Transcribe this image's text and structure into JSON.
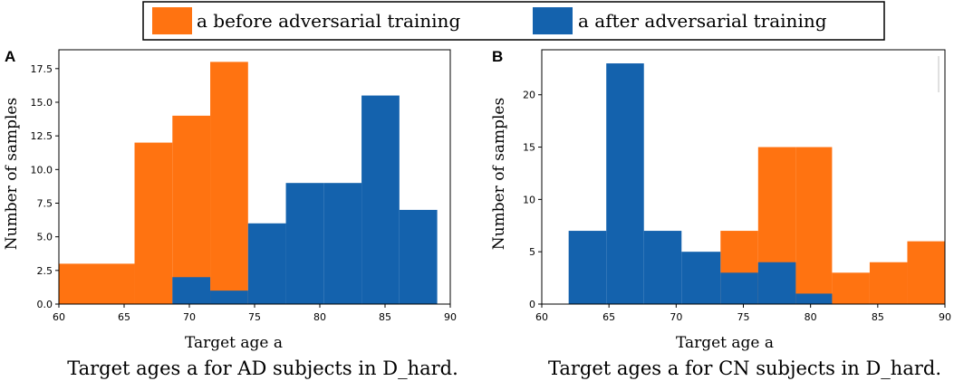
{
  "legend": {
    "before_label": "a before adversarial training",
    "after_label": "a after adversarial training",
    "before_color": "#ff7311",
    "after_color": "#1462ad"
  },
  "chart_data": [
    {
      "type": "bar",
      "panel_letter": "A",
      "caption": "Target ages a for AD subjects in D_hard.",
      "xlabel": "Target age a",
      "ylabel": "Number of samples",
      "xlim": [
        60,
        90
      ],
      "ylim": [
        0,
        18.9
      ],
      "xticks": [
        "60",
        "65",
        "70",
        "75",
        "80",
        "85",
        "90"
      ],
      "yticks": [
        "0.0",
        "2.5",
        "5.0",
        "7.5",
        "10.0",
        "12.5",
        "15.0",
        "17.5"
      ],
      "series": [
        {
          "name": "a before adversarial training",
          "bins": [
            {
              "x0": 60.0,
              "x1": 65.8,
              "value": 3
            },
            {
              "x0": 65.8,
              "x1": 68.7,
              "value": 12
            },
            {
              "x0": 68.7,
              "x1": 71.6,
              "value": 14
            },
            {
              "x0": 71.6,
              "x1": 74.5,
              "value": 18
            }
          ]
        },
        {
          "name": "a after adversarial training",
          "bins": [
            {
              "x0": 68.7,
              "x1": 71.6,
              "value": 2
            },
            {
              "x0": 71.6,
              "x1": 74.5,
              "value": 1
            },
            {
              "x0": 74.5,
              "x1": 77.4,
              "value": 6
            },
            {
              "x0": 77.4,
              "x1": 80.3,
              "value": 9
            },
            {
              "x0": 80.3,
              "x1": 83.2,
              "value": 9
            },
            {
              "x0": 83.2,
              "x1": 86.1,
              "value": 15.5
            },
            {
              "x0": 86.1,
              "x1": 89.0,
              "value": 7
            }
          ]
        }
      ]
    },
    {
      "type": "bar",
      "panel_letter": "B",
      "caption": "Target ages a for CN subjects in D_hard.",
      "xlabel": "Target age a",
      "ylabel": "Number of samples",
      "xlim": [
        60,
        90
      ],
      "ylim": [
        0,
        24.3
      ],
      "xticks": [
        "60",
        "65",
        "70",
        "75",
        "80",
        "85",
        "90"
      ],
      "yticks": [
        "0",
        "5",
        "10",
        "15",
        "20"
      ],
      "series": [
        {
          "name": "a before adversarial training",
          "bins": [
            {
              "x0": 73.3,
              "x1": 76.1,
              "value": 7
            },
            {
              "x0": 76.1,
              "x1": 78.9,
              "value": 15
            },
            {
              "x0": 78.9,
              "x1": 81.6,
              "value": 15
            },
            {
              "x0": 81.6,
              "x1": 84.4,
              "value": 3
            },
            {
              "x0": 84.4,
              "x1": 87.2,
              "value": 4
            },
            {
              "x0": 87.2,
              "x1": 90.0,
              "value": 6
            }
          ]
        },
        {
          "name": "a after adversarial training",
          "bins": [
            {
              "x0": 62.0,
              "x1": 64.8,
              "value": 7
            },
            {
              "x0": 64.8,
              "x1": 67.6,
              "value": 23
            },
            {
              "x0": 67.6,
              "x1": 70.4,
              "value": 7
            },
            {
              "x0": 70.4,
              "x1": 73.3,
              "value": 5
            },
            {
              "x0": 73.3,
              "x1": 76.1,
              "value": 3
            },
            {
              "x0": 76.1,
              "x1": 78.9,
              "value": 4
            },
            {
              "x0": 78.9,
              "x1": 81.6,
              "value": 1
            }
          ]
        }
      ]
    }
  ]
}
